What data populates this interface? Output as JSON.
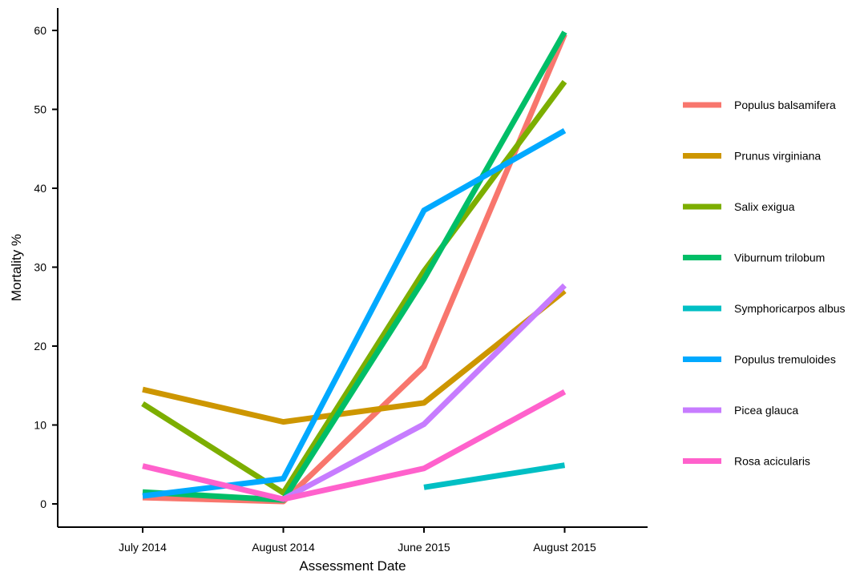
{
  "chart_data": {
    "type": "line",
    "title": "",
    "xlabel": "Assessment Date",
    "ylabel": "Mortality %",
    "categories": [
      "July 2014",
      "August 2014",
      "June 2015",
      "August 2015"
    ],
    "ylim": [
      -3,
      62
    ],
    "yticks": [
      0,
      10,
      20,
      30,
      40,
      50,
      60
    ],
    "grid": false,
    "legend_position": "right",
    "series": [
      {
        "name": "Populus balsamifera",
        "color": "#F8766D",
        "values": [
          0.8,
          0.3,
          17.4,
          59.5
        ]
      },
      {
        "name": "Prunus virginiana",
        "color": "#CD9600",
        "values": [
          14.5,
          10.4,
          12.8,
          27.0
        ]
      },
      {
        "name": "Salix exigua",
        "color": "#7CAE00",
        "values": [
          12.7,
          1.4,
          29.5,
          53.5
        ]
      },
      {
        "name": "Viburnum trilobum",
        "color": "#00BE67",
        "values": [
          1.5,
          0.5,
          28.5,
          59.8
        ]
      },
      {
        "name": "Symphoricarpos albus",
        "color": "#00BFC4",
        "values": [
          null,
          null,
          2.1,
          4.9
        ]
      },
      {
        "name": "Populus tremuloides",
        "color": "#00A9FF",
        "values": [
          1.0,
          3.2,
          37.2,
          47.3
        ]
      },
      {
        "name": "Picea glauca",
        "color": "#C77CFF",
        "values": [
          null,
          0.6,
          10.1,
          27.7
        ]
      },
      {
        "name": "Rosa acicularis",
        "color": "#FF61CC",
        "values": [
          4.8,
          0.6,
          4.5,
          14.2
        ]
      }
    ]
  }
}
